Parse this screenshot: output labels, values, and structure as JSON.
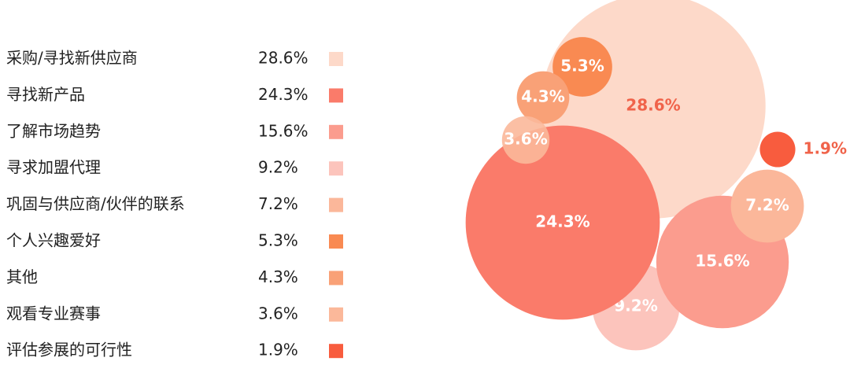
{
  "chart_data": {
    "type": "bubble",
    "categories": [
      "采购/寻找新供应商",
      "寻找新产品",
      "了解市场趋势",
      "寻求加盟代理",
      "巩固与供应商/伙伴的联系",
      "个人兴趣爱好",
      "其他",
      "观看专业赛事",
      "评估参展的可行性"
    ],
    "values": [
      28.6,
      24.3,
      15.6,
      9.2,
      7.2,
      5.3,
      4.3,
      3.6,
      1.9
    ],
    "value_labels": [
      "28.6%",
      "24.3%",
      "15.6%",
      "9.2%",
      "7.2%",
      "5.3%",
      "4.3%",
      "3.6%",
      "1.9%"
    ],
    "colors": [
      "#fdd9c9",
      "#fa7b6a",
      "#fb9c8e",
      "#fcc4bc",
      "#fbb79a",
      "#f98a52",
      "#f9a177",
      "#fbb89a",
      "#f85c3e"
    ]
  }
}
